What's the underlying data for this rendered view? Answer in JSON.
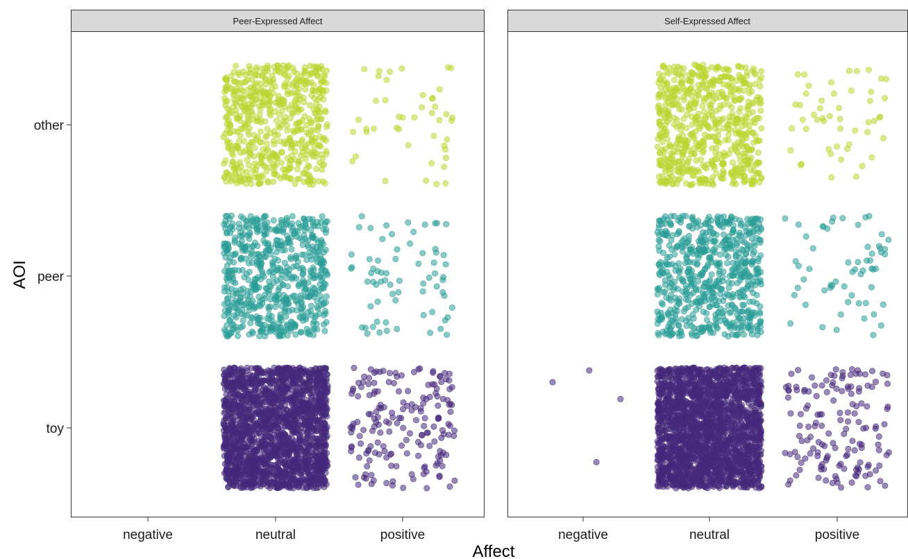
{
  "chart_data": {
    "type": "scatter",
    "subtype": "jitter",
    "xlabel": "Affect",
    "ylabel": "AOI",
    "x_categories": [
      "negative",
      "neutral",
      "positive"
    ],
    "y_categories": [
      "toy",
      "peer",
      "other"
    ],
    "grid": false,
    "legend": "none",
    "point_alpha": 0.55,
    "colors": {
      "other": "#BCD531",
      "peer": "#2A9C96",
      "toy": "#45287A"
    },
    "panels": [
      {
        "title": "Peer-Expressed Affect",
        "approx_counts": {
          "other": {
            "negative": 0,
            "neutral": 600,
            "positive": 45
          },
          "peer": {
            "negative": 0,
            "neutral": 650,
            "positive": 70
          },
          "toy": {
            "negative": 0,
            "neutral": 2000,
            "positive": 180
          }
        }
      },
      {
        "title": "Self-Expressed Affect",
        "approx_counts": {
          "other": {
            "negative": 0,
            "neutral": 650,
            "positive": 50
          },
          "peer": {
            "negative": 0,
            "neutral": 650,
            "positive": 60
          },
          "toy": {
            "negative": 4,
            "neutral": 2200,
            "positive": 150
          }
        }
      }
    ]
  }
}
